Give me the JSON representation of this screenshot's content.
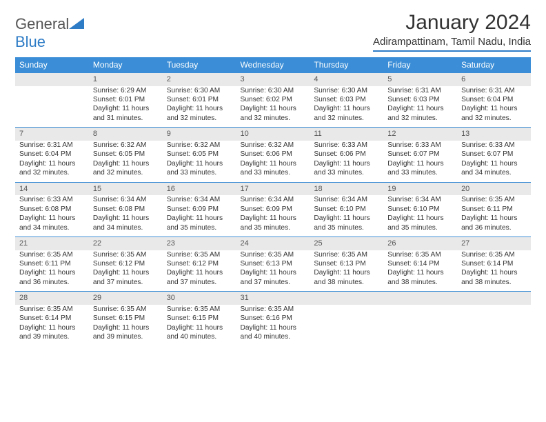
{
  "brand": {
    "part1": "General",
    "part2": "Blue"
  },
  "title": "January 2024",
  "location": "Adirampattinam, Tamil Nadu, India",
  "colors": {
    "accent": "#3a8dd6",
    "header_bg": "#3a8dd6",
    "row_bg": "#e9e9e9"
  },
  "days_of_week": [
    "Sunday",
    "Monday",
    "Tuesday",
    "Wednesday",
    "Thursday",
    "Friday",
    "Saturday"
  ],
  "weeks": [
    {
      "nums": [
        "",
        "1",
        "2",
        "3",
        "4",
        "5",
        "6"
      ],
      "cells": [
        null,
        {
          "sunrise": "Sunrise: 6:29 AM",
          "sunset": "Sunset: 6:01 PM",
          "d1": "Daylight: 11 hours",
          "d2": "and 31 minutes."
        },
        {
          "sunrise": "Sunrise: 6:30 AM",
          "sunset": "Sunset: 6:01 PM",
          "d1": "Daylight: 11 hours",
          "d2": "and 32 minutes."
        },
        {
          "sunrise": "Sunrise: 6:30 AM",
          "sunset": "Sunset: 6:02 PM",
          "d1": "Daylight: 11 hours",
          "d2": "and 32 minutes."
        },
        {
          "sunrise": "Sunrise: 6:30 AM",
          "sunset": "Sunset: 6:03 PM",
          "d1": "Daylight: 11 hours",
          "d2": "and 32 minutes."
        },
        {
          "sunrise": "Sunrise: 6:31 AM",
          "sunset": "Sunset: 6:03 PM",
          "d1": "Daylight: 11 hours",
          "d2": "and 32 minutes."
        },
        {
          "sunrise": "Sunrise: 6:31 AM",
          "sunset": "Sunset: 6:04 PM",
          "d1": "Daylight: 11 hours",
          "d2": "and 32 minutes."
        }
      ]
    },
    {
      "nums": [
        "7",
        "8",
        "9",
        "10",
        "11",
        "12",
        "13"
      ],
      "cells": [
        {
          "sunrise": "Sunrise: 6:31 AM",
          "sunset": "Sunset: 6:04 PM",
          "d1": "Daylight: 11 hours",
          "d2": "and 32 minutes."
        },
        {
          "sunrise": "Sunrise: 6:32 AM",
          "sunset": "Sunset: 6:05 PM",
          "d1": "Daylight: 11 hours",
          "d2": "and 32 minutes."
        },
        {
          "sunrise": "Sunrise: 6:32 AM",
          "sunset": "Sunset: 6:05 PM",
          "d1": "Daylight: 11 hours",
          "d2": "and 33 minutes."
        },
        {
          "sunrise": "Sunrise: 6:32 AM",
          "sunset": "Sunset: 6:06 PM",
          "d1": "Daylight: 11 hours",
          "d2": "and 33 minutes."
        },
        {
          "sunrise": "Sunrise: 6:33 AM",
          "sunset": "Sunset: 6:06 PM",
          "d1": "Daylight: 11 hours",
          "d2": "and 33 minutes."
        },
        {
          "sunrise": "Sunrise: 6:33 AM",
          "sunset": "Sunset: 6:07 PM",
          "d1": "Daylight: 11 hours",
          "d2": "and 33 minutes."
        },
        {
          "sunrise": "Sunrise: 6:33 AM",
          "sunset": "Sunset: 6:07 PM",
          "d1": "Daylight: 11 hours",
          "d2": "and 34 minutes."
        }
      ]
    },
    {
      "nums": [
        "14",
        "15",
        "16",
        "17",
        "18",
        "19",
        "20"
      ],
      "cells": [
        {
          "sunrise": "Sunrise: 6:33 AM",
          "sunset": "Sunset: 6:08 PM",
          "d1": "Daylight: 11 hours",
          "d2": "and 34 minutes."
        },
        {
          "sunrise": "Sunrise: 6:34 AM",
          "sunset": "Sunset: 6:08 PM",
          "d1": "Daylight: 11 hours",
          "d2": "and 34 minutes."
        },
        {
          "sunrise": "Sunrise: 6:34 AM",
          "sunset": "Sunset: 6:09 PM",
          "d1": "Daylight: 11 hours",
          "d2": "and 35 minutes."
        },
        {
          "sunrise": "Sunrise: 6:34 AM",
          "sunset": "Sunset: 6:09 PM",
          "d1": "Daylight: 11 hours",
          "d2": "and 35 minutes."
        },
        {
          "sunrise": "Sunrise: 6:34 AM",
          "sunset": "Sunset: 6:10 PM",
          "d1": "Daylight: 11 hours",
          "d2": "and 35 minutes."
        },
        {
          "sunrise": "Sunrise: 6:34 AM",
          "sunset": "Sunset: 6:10 PM",
          "d1": "Daylight: 11 hours",
          "d2": "and 35 minutes."
        },
        {
          "sunrise": "Sunrise: 6:35 AM",
          "sunset": "Sunset: 6:11 PM",
          "d1": "Daylight: 11 hours",
          "d2": "and 36 minutes."
        }
      ]
    },
    {
      "nums": [
        "21",
        "22",
        "23",
        "24",
        "25",
        "26",
        "27"
      ],
      "cells": [
        {
          "sunrise": "Sunrise: 6:35 AM",
          "sunset": "Sunset: 6:11 PM",
          "d1": "Daylight: 11 hours",
          "d2": "and 36 minutes."
        },
        {
          "sunrise": "Sunrise: 6:35 AM",
          "sunset": "Sunset: 6:12 PM",
          "d1": "Daylight: 11 hours",
          "d2": "and 37 minutes."
        },
        {
          "sunrise": "Sunrise: 6:35 AM",
          "sunset": "Sunset: 6:12 PM",
          "d1": "Daylight: 11 hours",
          "d2": "and 37 minutes."
        },
        {
          "sunrise": "Sunrise: 6:35 AM",
          "sunset": "Sunset: 6:13 PM",
          "d1": "Daylight: 11 hours",
          "d2": "and 37 minutes."
        },
        {
          "sunrise": "Sunrise: 6:35 AM",
          "sunset": "Sunset: 6:13 PM",
          "d1": "Daylight: 11 hours",
          "d2": "and 38 minutes."
        },
        {
          "sunrise": "Sunrise: 6:35 AM",
          "sunset": "Sunset: 6:14 PM",
          "d1": "Daylight: 11 hours",
          "d2": "and 38 minutes."
        },
        {
          "sunrise": "Sunrise: 6:35 AM",
          "sunset": "Sunset: 6:14 PM",
          "d1": "Daylight: 11 hours",
          "d2": "and 38 minutes."
        }
      ]
    },
    {
      "nums": [
        "28",
        "29",
        "30",
        "31",
        "",
        "",
        ""
      ],
      "cells": [
        {
          "sunrise": "Sunrise: 6:35 AM",
          "sunset": "Sunset: 6:14 PM",
          "d1": "Daylight: 11 hours",
          "d2": "and 39 minutes."
        },
        {
          "sunrise": "Sunrise: 6:35 AM",
          "sunset": "Sunset: 6:15 PM",
          "d1": "Daylight: 11 hours",
          "d2": "and 39 minutes."
        },
        {
          "sunrise": "Sunrise: 6:35 AM",
          "sunset": "Sunset: 6:15 PM",
          "d1": "Daylight: 11 hours",
          "d2": "and 40 minutes."
        },
        {
          "sunrise": "Sunrise: 6:35 AM",
          "sunset": "Sunset: 6:16 PM",
          "d1": "Daylight: 11 hours",
          "d2": "and 40 minutes."
        },
        null,
        null,
        null
      ]
    }
  ]
}
